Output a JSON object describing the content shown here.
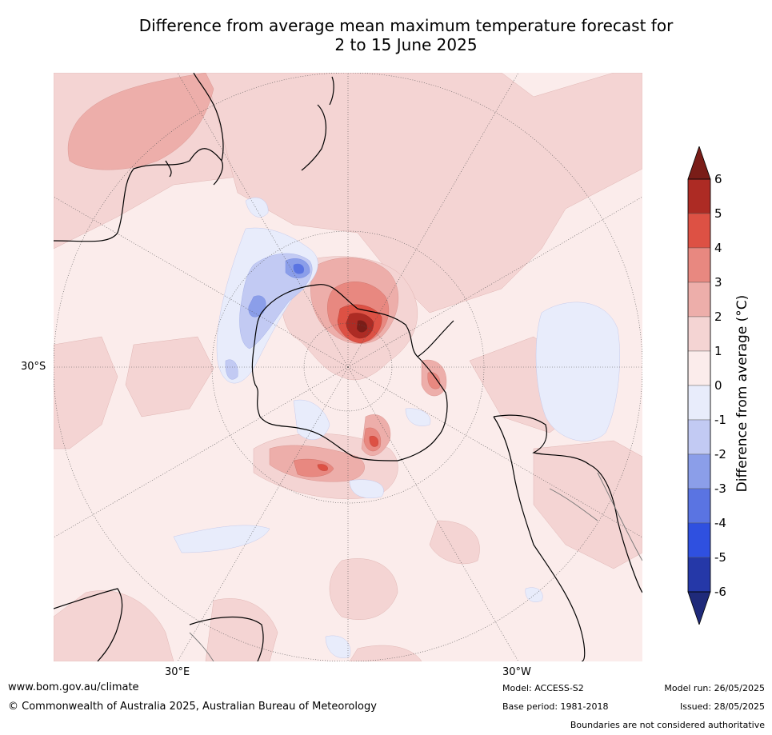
{
  "title": {
    "line1": "Difference from average mean maximum temperature forecast for",
    "line2": "2 to 15 June 2025"
  },
  "map": {
    "projection": "south-polar stereographic",
    "graticule_labels": {
      "lat": "30°S",
      "lon_left": "30°E",
      "lon_right": "30°W"
    },
    "palette": {
      "n6": "#1f2a7a",
      "n5": "#2a3bb0",
      "n4": "#2f50e0",
      "n3": "#5a74e2",
      "n2": "#8b9ee9",
      "n1": "#c2caf3",
      "n0": "#e8ecfb",
      "p0": "#fbeceb",
      "p1": "#f4d4d3",
      "p2": "#edaeaa",
      "p3": "#e88880",
      "p4": "#dd5144",
      "p5": "#ad2b24",
      "p6": "#7a1d18"
    }
  },
  "colorbar": {
    "label": "Difference from average (°C)",
    "ticks": [
      "6",
      "5",
      "4",
      "3",
      "2",
      "1",
      "0",
      "-1",
      "-2",
      "-3",
      "-4",
      "-5",
      "-6"
    ],
    "levels": [
      -6,
      -5,
      -4,
      -3,
      -2,
      -1,
      0,
      1,
      2,
      3,
      4,
      5,
      6
    ],
    "colors_low_to_high": [
      "#2538a8",
      "#2f50e0",
      "#5a74e2",
      "#8b9ee9",
      "#c2caf3",
      "#e8ecfb",
      "#fbeceb",
      "#f4d4d3",
      "#edaeaa",
      "#e88880",
      "#dd5144",
      "#ad2b24"
    ],
    "extend_low_color": "#1f2a7a",
    "extend_high_color": "#7a1d18"
  },
  "footer": {
    "website": "www.bom.gov.au/climate",
    "copyright": "© Commonwealth of Australia 2025, Australian Bureau of Meteorology",
    "model": "Model: ACCESS-S2",
    "base_period": "Base period: 1981-2018",
    "model_run": "Model run: 26/05/2025",
    "issued": "Issued: 28/05/2025",
    "disclaimer": "Boundaries are not considered authoritative"
  }
}
